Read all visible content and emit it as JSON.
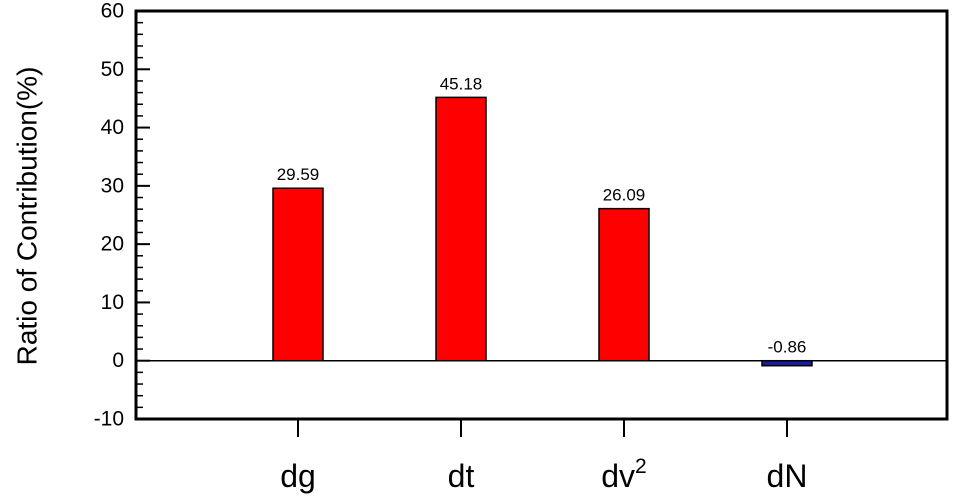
{
  "chart_data": {
    "type": "bar",
    "title": "",
    "xlabel": "",
    "ylabel": "Ratio of Contribution(%)",
    "ylim": [
      -10,
      60
    ],
    "yticks": [
      -10,
      0,
      10,
      20,
      30,
      40,
      50,
      60
    ],
    "yticks_labels": [
      "-10",
      "0",
      "10",
      "20",
      "30",
      "40",
      "50",
      "60"
    ],
    "categories": [
      {
        "base": "dg",
        "sup": ""
      },
      {
        "base": "dt",
        "sup": ""
      },
      {
        "base": "dv",
        "sup": "2"
      },
      {
        "base": "dN",
        "sup": ""
      }
    ],
    "values": [
      29.59,
      45.18,
      26.09,
      -0.86
    ],
    "value_labels": [
      "29.59",
      "45.18",
      "26.09",
      "-0.86"
    ],
    "colors": {
      "positive": "#ff0000",
      "negative": "#1a1aa0",
      "outline": "#000000"
    },
    "grid": false,
    "legend": "none",
    "zero_line": true
  }
}
